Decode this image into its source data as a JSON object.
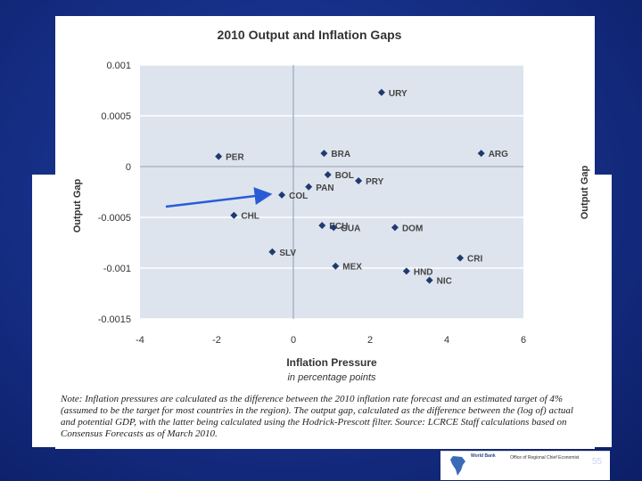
{
  "chart_data": {
    "type": "scatter",
    "title": "2010 Output and Inflation Gaps",
    "xlabel": "Inflation Pressure",
    "xlabel_sub": "in percentage points",
    "ylabel": "Output Gap",
    "ylabel_right": "Output Gap",
    "xlim": [
      -4,
      6
    ],
    "ylim": [
      -0.0015,
      0.001
    ],
    "xticks": [
      -4,
      -2,
      0,
      2,
      4,
      6
    ],
    "yticks": [
      0.001,
      0.0005,
      0,
      -0.0005,
      -0.001,
      -0.0015
    ],
    "ytick_labels": [
      "0.001",
      "0.0005",
      "0",
      "-0.0005",
      "-0.001",
      "-0.0015"
    ],
    "xtick_labels": [
      "-4",
      "-2",
      "0",
      "2",
      "4",
      "6"
    ],
    "grid": true,
    "points": [
      {
        "label": "URY",
        "x": 2.3,
        "y": 0.00073
      },
      {
        "label": "BRA",
        "x": 0.8,
        "y": 0.00013
      },
      {
        "label": "ARG",
        "x": 4.9,
        "y": 0.00013
      },
      {
        "label": "PER",
        "x": -1.95,
        "y": 0.0001
      },
      {
        "label": "BOL",
        "x": 0.9,
        "y": -8e-05
      },
      {
        "label": "PRY",
        "x": 1.7,
        "y": -0.00014
      },
      {
        "label": "PAN",
        "x": 0.4,
        "y": -0.0002
      },
      {
        "label": "COL",
        "x": -0.3,
        "y": -0.00028
      },
      {
        "label": "CHL",
        "x": -1.55,
        "y": -0.00048
      },
      {
        "label": "ECU",
        "x": 0.75,
        "y": -0.00058
      },
      {
        "label": "GUA",
        "x": 1.05,
        "y": -0.0006
      },
      {
        "label": "DOM",
        "x": 2.65,
        "y": -0.0006
      },
      {
        "label": "SLV",
        "x": -0.55,
        "y": -0.00084
      },
      {
        "label": "CRI",
        "x": 4.35,
        "y": -0.0009
      },
      {
        "label": "MEX",
        "x": 1.1,
        "y": -0.00098
      },
      {
        "label": "HND",
        "x": 2.95,
        "y": -0.00103
      },
      {
        "label": "NIC",
        "x": 3.55,
        "y": -0.00112
      }
    ],
    "arrow_target": "COL"
  },
  "note": "Note: Inflation pressures are calculated as the difference between the 2010 inflation rate forecast and an estimated target of 4% (assumed to be the target for most countries in the region). The output gap, calculated as the difference between the (log of) actual and potential GDP, with the latter being calculated using the Hodrick-Prescott filter. Source: LCRCE Staff calculations based on Consensus Forecasts as of March 2010.",
  "footer": {
    "logo_text": "World Bank",
    "office_text": "Office of Regional Chief Economist",
    "page_number": "55"
  },
  "colors": {
    "plot_bg": "#dde4ee",
    "grid": "#ffffff",
    "marker": "#1f3a6e",
    "arrow": "#2a5bd7",
    "text": "#333333"
  }
}
